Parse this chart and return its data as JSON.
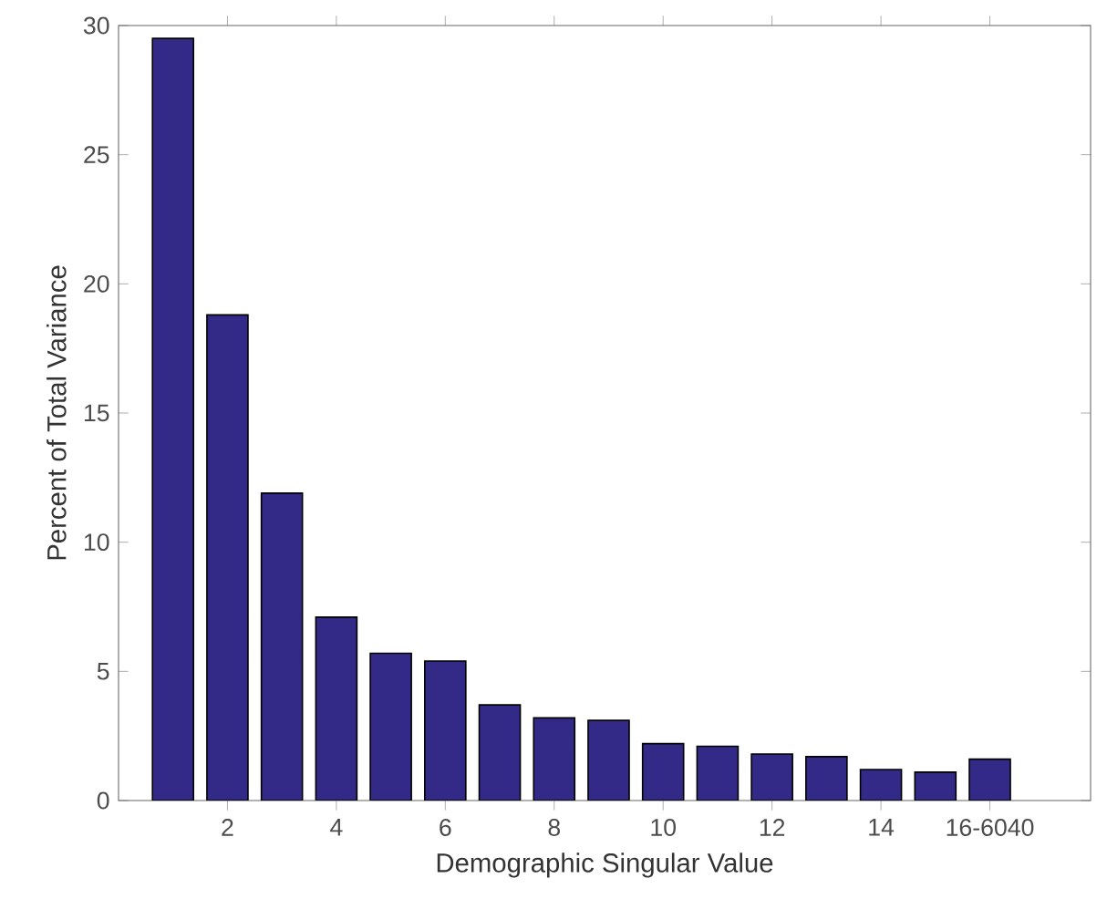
{
  "chart_data": {
    "type": "bar",
    "xlabel": "Demographic Singular Value",
    "ylabel": "Percent of Total Variance",
    "categories": [
      null,
      "2",
      null,
      "4",
      null,
      "6",
      null,
      "8",
      null,
      "10",
      null,
      "12",
      null,
      "14",
      null,
      "16-6040"
    ],
    "values": [
      29.5,
      18.8,
      11.9,
      7.1,
      5.7,
      5.4,
      3.7,
      3.2,
      3.1,
      2.2,
      2.1,
      1.8,
      1.7,
      1.2,
      1.1,
      1.6
    ],
    "color": "#332a87",
    "ylim": [
      0,
      30
    ],
    "yticks": [
      0,
      5,
      10,
      15,
      20,
      25,
      30
    ],
    "grid": false
  }
}
